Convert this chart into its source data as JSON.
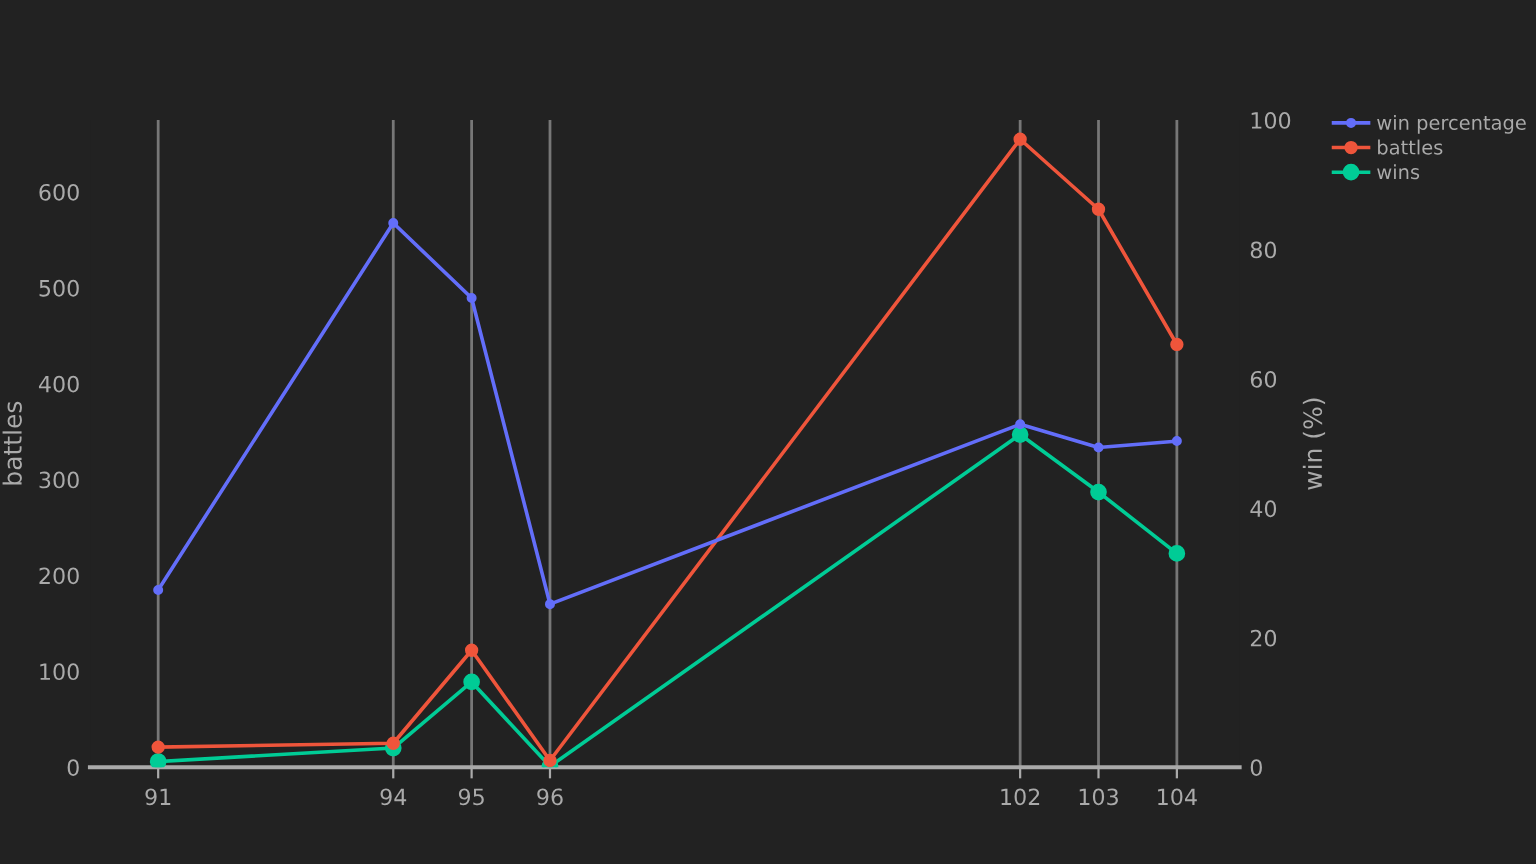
{
  "chart_data": {
    "type": "line",
    "ylabel": "battles",
    "y2label": "win (%)",
    "x": [
      91,
      94,
      95,
      96,
      102,
      103,
      104
    ],
    "series": [
      {
        "name": "win percentage",
        "color": "#636efa",
        "axis": "y2",
        "values": [
          27.4,
          84.1,
          72.5,
          25.2,
          53.0,
          49.4,
          50.4
        ]
      },
      {
        "name": "battles",
        "color": "#ef553b",
        "values": [
          21,
          25,
          122,
          7,
          655,
          582,
          441
        ]
      },
      {
        "name": "wins",
        "color": "#00cc96",
        "values": [
          6,
          20,
          89,
          1,
          347,
          287,
          223
        ]
      }
    ],
    "xlim": [
      90.13,
      104.8
    ],
    "xticks": [
      91,
      94,
      95,
      96,
      102,
      103,
      104
    ],
    "ylim": [
      0,
      675
    ],
    "yticks": [
      0,
      100,
      200,
      300,
      400,
      500,
      600
    ],
    "y2lim": [
      0,
      100
    ],
    "y2ticks": [
      0,
      20,
      40,
      60,
      80,
      100
    ],
    "grid": "x",
    "legend": "top right",
    "marker": "circle",
    "line_style": "solid"
  }
}
